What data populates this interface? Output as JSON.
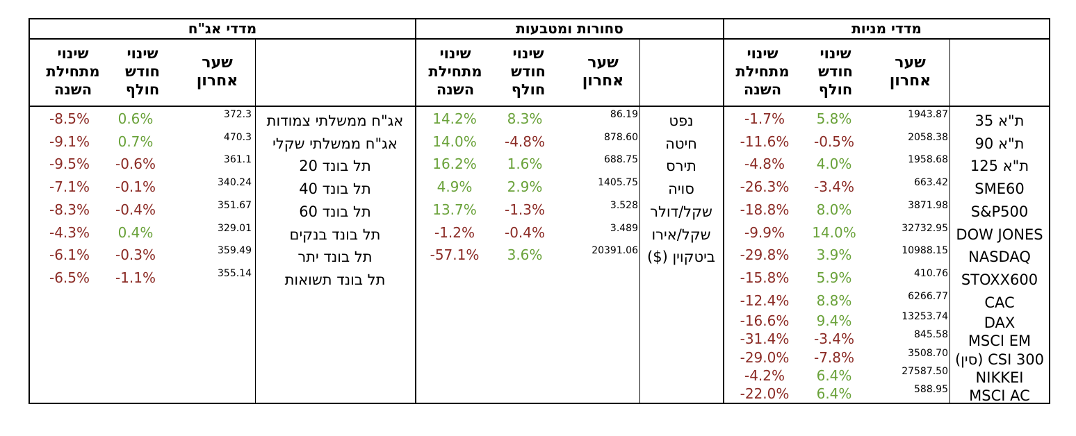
{
  "sections": {
    "bonds": {
      "title": "מדדי אג\"ח",
      "headers": {
        "ytd": "שינוי מתחילת השנה",
        "month": "שינוי חודש חולף",
        "last": "שער אחרון",
        "name": ""
      },
      "rows": [
        {
          "ytd": "-8.5%",
          "ytd_dir": "neg",
          "month": "0.6%",
          "month_dir": "pos",
          "last": "372.3",
          "name": "אג\"ח ממשלתי צמודות"
        },
        {
          "ytd": "-9.1%",
          "ytd_dir": "neg",
          "month": "0.7%",
          "month_dir": "pos",
          "last": "470.3",
          "name": "אג\"ח ממשלתי שקלי"
        },
        {
          "ytd": "-9.5%",
          "ytd_dir": "neg",
          "month": "-0.6%",
          "month_dir": "neg",
          "last": "361.1",
          "name": "תל בונד 20"
        },
        {
          "ytd": "-7.1%",
          "ytd_dir": "neg",
          "month": "-0.1%",
          "month_dir": "neg",
          "last": "340.24",
          "name": "תל בונד 40"
        },
        {
          "ytd": "-8.3%",
          "ytd_dir": "neg",
          "month": "-0.4%",
          "month_dir": "neg",
          "last": "351.67",
          "name": "תל בונד 60"
        },
        {
          "ytd": "-4.3%",
          "ytd_dir": "neg",
          "month": "0.4%",
          "month_dir": "pos",
          "last": "329.01",
          "name": "תל בונד בנקים"
        },
        {
          "ytd": "-6.1%",
          "ytd_dir": "neg",
          "month": "-0.3%",
          "month_dir": "neg",
          "last": "359.49",
          "name": "תל בונד יתר"
        },
        {
          "ytd": "-6.5%",
          "ytd_dir": "neg",
          "month": "-1.1%",
          "month_dir": "neg",
          "last": "355.14",
          "name": "תל בונד תשואות"
        }
      ]
    },
    "commodities": {
      "title": "סחורות ומטבעות",
      "headers": {
        "ytd": "שינוי מתחילת השנה",
        "month": "שינוי חודש חולף",
        "last": "שער אחרון",
        "name": ""
      },
      "rows": [
        {
          "ytd": "14.2%",
          "ytd_dir": "pos",
          "month": "8.3%",
          "month_dir": "pos",
          "last": "86.19",
          "name": "נפט"
        },
        {
          "ytd": "14.0%",
          "ytd_dir": "pos",
          "month": "-4.8%",
          "month_dir": "neg",
          "last": "878.60",
          "name": "חיטה"
        },
        {
          "ytd": "16.2%",
          "ytd_dir": "pos",
          "month": "1.6%",
          "month_dir": "pos",
          "last": "688.75",
          "name": "תירס"
        },
        {
          "ytd": "4.9%",
          "ytd_dir": "pos",
          "month": "2.9%",
          "month_dir": "pos",
          "last": "1405.75",
          "name": "סויה"
        },
        {
          "ytd": "13.7%",
          "ytd_dir": "pos",
          "month": "-1.3%",
          "month_dir": "neg",
          "last": "3.528",
          "name": "שקל/דולר"
        },
        {
          "ytd": "-1.2%",
          "ytd_dir": "neg",
          "month": "-0.4%",
          "month_dir": "neg",
          "last": "3.489",
          "name": "שקל/אירו"
        },
        {
          "ytd": "-57.1%",
          "ytd_dir": "neg",
          "month": "3.6%",
          "month_dir": "pos",
          "last": "20391.06",
          "name": "ביטקוין ($)"
        }
      ]
    },
    "equities": {
      "title": "מדדי מניות",
      "headers": {
        "ytd": "שינוי מתחילת השנה",
        "month": "שינוי חודש חולף",
        "last": "שער אחרון",
        "name": ""
      },
      "rows": [
        {
          "ytd": "-1.7%",
          "ytd_dir": "neg",
          "month": "5.8%",
          "month_dir": "pos",
          "last": "1943.87",
          "name": "ת\"א 35"
        },
        {
          "ytd": "-11.6%",
          "ytd_dir": "neg",
          "month": "-0.5%",
          "month_dir": "neg",
          "last": "2058.38",
          "name": "ת\"א 90"
        },
        {
          "ytd": "-4.8%",
          "ytd_dir": "neg",
          "month": "4.0%",
          "month_dir": "pos",
          "last": "1958.68",
          "name": "ת\"א 125"
        },
        {
          "ytd": "-26.3%",
          "ytd_dir": "neg",
          "month": "-3.4%",
          "month_dir": "neg",
          "last": "663.42",
          "name": "SME60"
        },
        {
          "ytd": "-18.8%",
          "ytd_dir": "neg",
          "month": "8.0%",
          "month_dir": "pos",
          "last": "3871.98",
          "name": "S&P500"
        },
        {
          "ytd": "-9.9%",
          "ytd_dir": "neg",
          "month": "14.0%",
          "month_dir": "pos",
          "last": "32732.95",
          "name": "DOW JONES"
        },
        {
          "ytd": "-29.8%",
          "ytd_dir": "neg",
          "month": "3.9%",
          "month_dir": "pos",
          "last": "10988.15",
          "name": "NASDAQ"
        },
        {
          "ytd": "-15.8%",
          "ytd_dir": "neg",
          "month": "5.9%",
          "month_dir": "pos",
          "last": "410.76",
          "name": "STOXX600"
        },
        {
          "ytd": "-12.4%",
          "ytd_dir": "neg",
          "month": "8.8%",
          "month_dir": "pos",
          "last": "6266.77",
          "name": "CAC"
        },
        {
          "ytd": "-16.6%",
          "ytd_dir": "neg",
          "month": "9.4%",
          "month_dir": "pos",
          "last": "13253.74",
          "name": "DAX"
        },
        {
          "ytd": "-31.4%",
          "ytd_dir": "neg",
          "month": "-3.4%",
          "month_dir": "neg",
          "last": "845.58",
          "name": "MSCI EM"
        },
        {
          "ytd": "-29.0%",
          "ytd_dir": "neg",
          "month": "-7.8%",
          "month_dir": "neg",
          "last": "3508.70",
          "name": "CSI 300 (סין)"
        },
        {
          "ytd": "-4.2%",
          "ytd_dir": "neg",
          "month": "6.4%",
          "month_dir": "pos",
          "last": "27587.50",
          "name": "NIKKEI"
        },
        {
          "ytd": "-22.0%",
          "ytd_dir": "neg",
          "month": "6.4%",
          "month_dir": "pos",
          "last": "588.95",
          "name": "MSCI AC"
        }
      ]
    }
  },
  "colors": {
    "positive": "#6aa23a",
    "negative": "#8b2b25",
    "border": "#000000"
  }
}
